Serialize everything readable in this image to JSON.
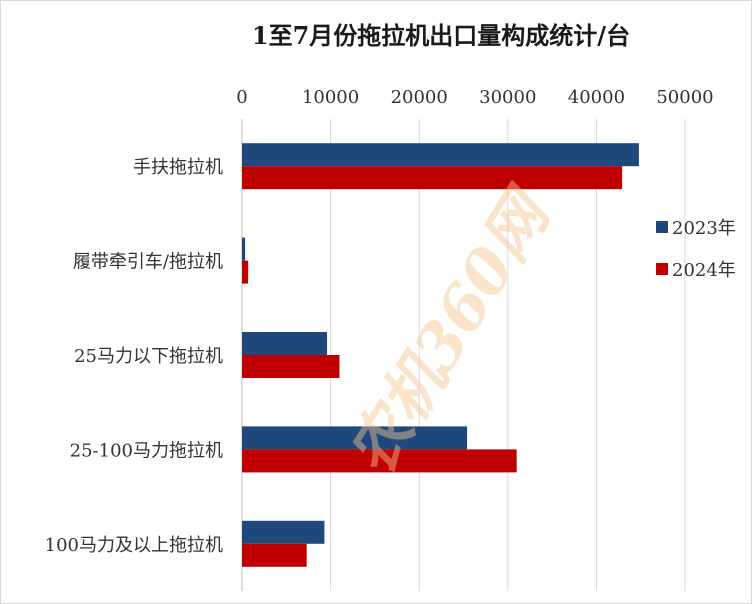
{
  "chart_data": {
    "type": "bar",
    "orientation": "horizontal",
    "title": "1至7月份拖拉机出口量构成统计/台",
    "categories": [
      "手扶拖拉机",
      "履带牵引车/拖拉机",
      "25马力以下拖拉机",
      "25-100马力拖拉机",
      "100马力及以上拖拉机"
    ],
    "series": [
      {
        "name": "2023年",
        "color": "#1f497d",
        "values": [
          44800,
          350,
          9600,
          25400,
          9300
        ]
      },
      {
        "name": "2024年",
        "color": "#c00000",
        "values": [
          42900,
          700,
          11000,
          31000,
          7300
        ]
      }
    ],
    "xlim": [
      0,
      50000
    ],
    "xticks": [
      0,
      10000,
      20000,
      30000,
      40000,
      50000
    ],
    "x_axis_position": "top",
    "grid": "vertical",
    "legend_position": "right"
  },
  "watermark": {
    "text": "农机360网",
    "color": "#f6c58f"
  }
}
